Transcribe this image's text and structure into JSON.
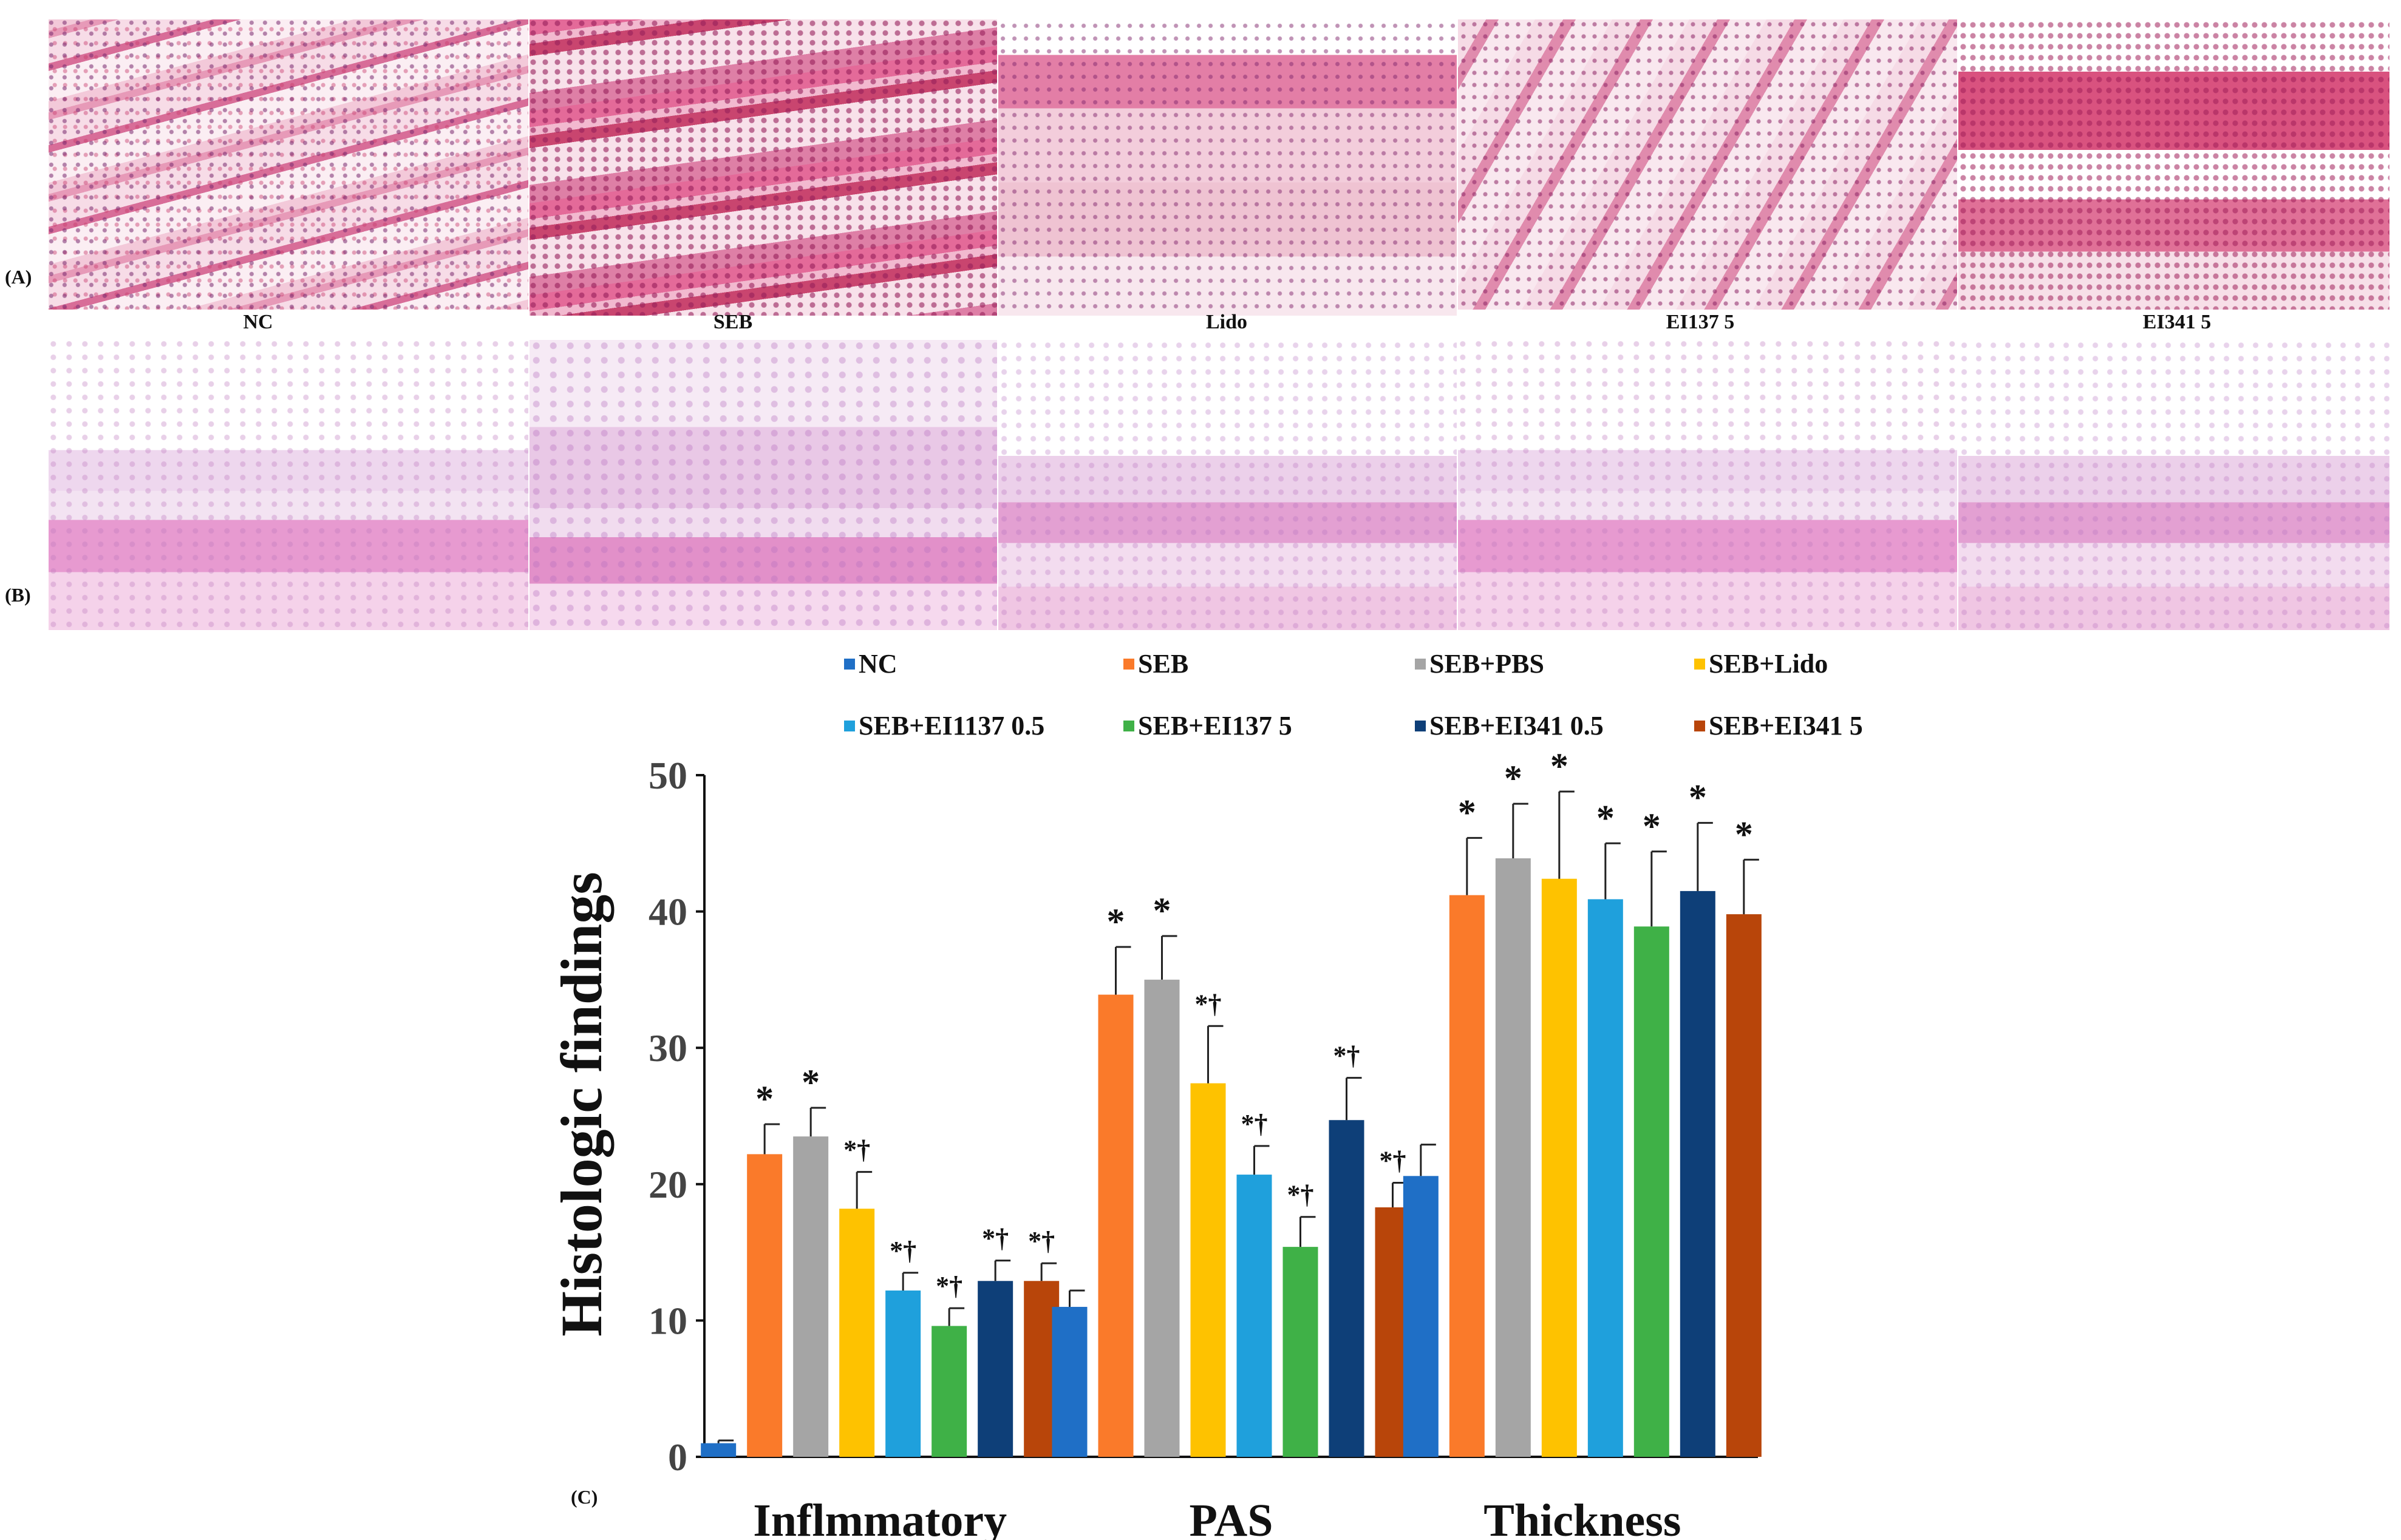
{
  "panels": {
    "a_label": "(A)",
    "b_label": "(B)",
    "c_label": "(C)",
    "captions": [
      "NC",
      "SEB",
      "Lido",
      "EI137 5",
      "EI341 5"
    ]
  },
  "chart_data": {
    "type": "bar",
    "categories": [
      "Inflmmatory",
      "PAS",
      "Thickness"
    ],
    "ylabel": "Histologic findings",
    "ylim": [
      0,
      50
    ],
    "yticks": [
      0,
      10,
      20,
      30,
      40,
      50
    ],
    "grid": false,
    "legend_placement": "top",
    "series": [
      {
        "name": "NC",
        "color": "#1f6fc6",
        "values": [
          1.0,
          11.0,
          20.6
        ],
        "errors": [
          0.2,
          1.2,
          2.3
        ],
        "marks": [
          "",
          "",
          ""
        ]
      },
      {
        "name": "SEB",
        "color": "#fa7a2a",
        "values": [
          22.2,
          33.9,
          41.2
        ],
        "errors": [
          2.2,
          3.5,
          4.2
        ],
        "marks": [
          "*",
          "*",
          "*"
        ]
      },
      {
        "name": "SEB+PBS",
        "color": "#a5a5a5",
        "values": [
          23.5,
          35.0,
          43.9
        ],
        "errors": [
          2.1,
          3.2,
          4.0
        ],
        "marks": [
          "*",
          "*",
          "*"
        ]
      },
      {
        "name": "SEB+Lido",
        "color": "#fec200",
        "values": [
          18.2,
          27.4,
          42.4
        ],
        "errors": [
          2.7,
          4.2,
          6.4
        ],
        "marks": [
          "*†",
          "*†",
          "*"
        ]
      },
      {
        "name": "SEB+EI1137 0.5",
        "color": "#1fa0dc",
        "values": [
          12.2,
          20.7,
          40.9
        ],
        "errors": [
          1.3,
          2.1,
          4.1
        ],
        "marks": [
          "*†",
          "*†",
          "*"
        ]
      },
      {
        "name": "SEB+EI137 5",
        "color": "#3fb147",
        "values": [
          9.6,
          15.4,
          38.9
        ],
        "errors": [
          1.3,
          2.2,
          5.5
        ],
        "marks": [
          "*†",
          "*†",
          "*"
        ]
      },
      {
        "name": "SEB+EI341 0.5",
        "color": "#0e3f78",
        "values": [
          12.9,
          24.7,
          41.5
        ],
        "errors": [
          1.5,
          3.1,
          5.0
        ],
        "marks": [
          "*†",
          "*†",
          "*"
        ]
      },
      {
        "name": "SEB+EI341 5",
        "color": "#b8450a",
        "values": [
          12.9,
          18.3,
          39.8
        ],
        "errors": [
          1.3,
          1.8,
          4.0
        ],
        "marks": [
          "*†",
          "*†",
          "*"
        ]
      }
    ]
  }
}
